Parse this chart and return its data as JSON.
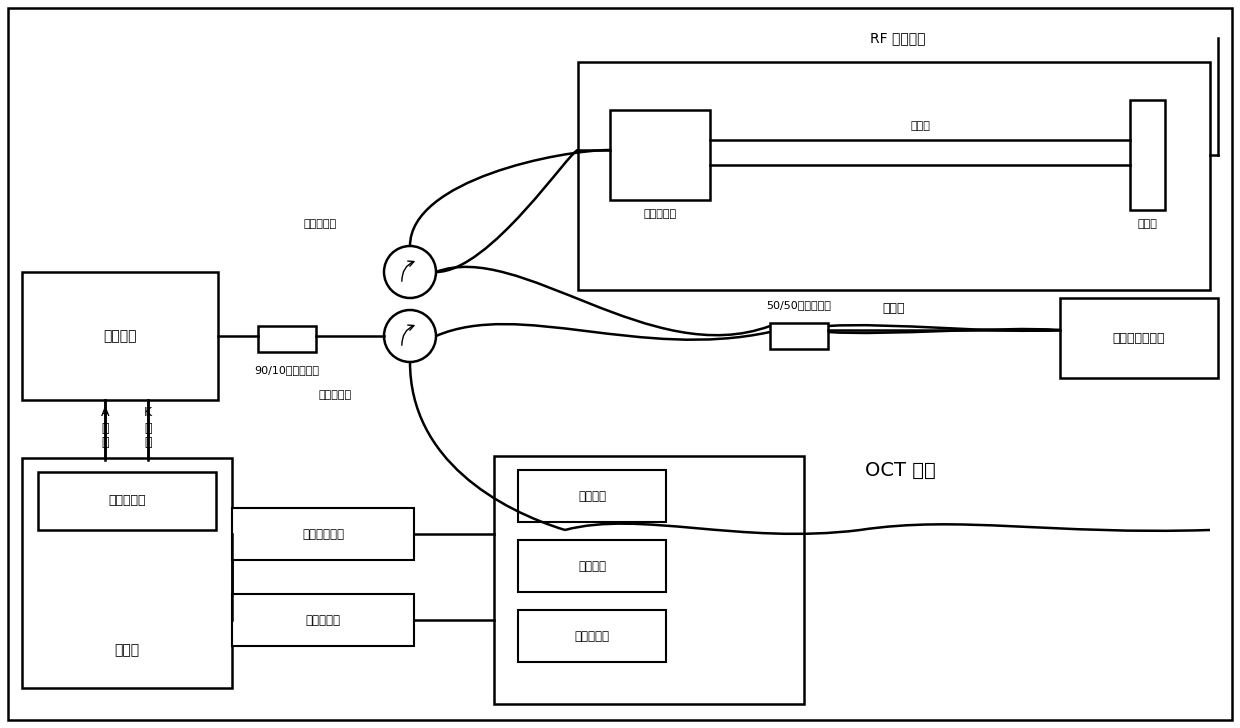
{
  "bg": "#ffffff",
  "lc": "#000000",
  "fw": 12.4,
  "fh": 7.28,
  "dpi": 100,
  "xmax": 1240,
  "ymax": 728,
  "labels": {
    "rf_output": "RF 输出信号",
    "fiber_collimator": "光纤准直器",
    "collimated_light": "准直光",
    "mirror": "反射镜",
    "reference_arm": "参考臂",
    "circ1": "光纤环行器",
    "circ2": "光纤环行器",
    "coup9010": "90/10光纤耦合器",
    "coup5050": "50/50光纤耦合器",
    "detector": "平衡光电探测器",
    "sweep": "扫频光源",
    "trigger": "A\n触\n发",
    "clock": "K\n时\n钟",
    "data_acq": "数据采集卡",
    "computer": "计算机",
    "plat_ctrl": "平移台控制器",
    "motor_ctrl": "马达控制器",
    "fiber_ring": "光纤滑环",
    "rotate_motor": "旋转马达",
    "pullback": "回拉平移台",
    "oct_probe": "OCT 探头"
  }
}
